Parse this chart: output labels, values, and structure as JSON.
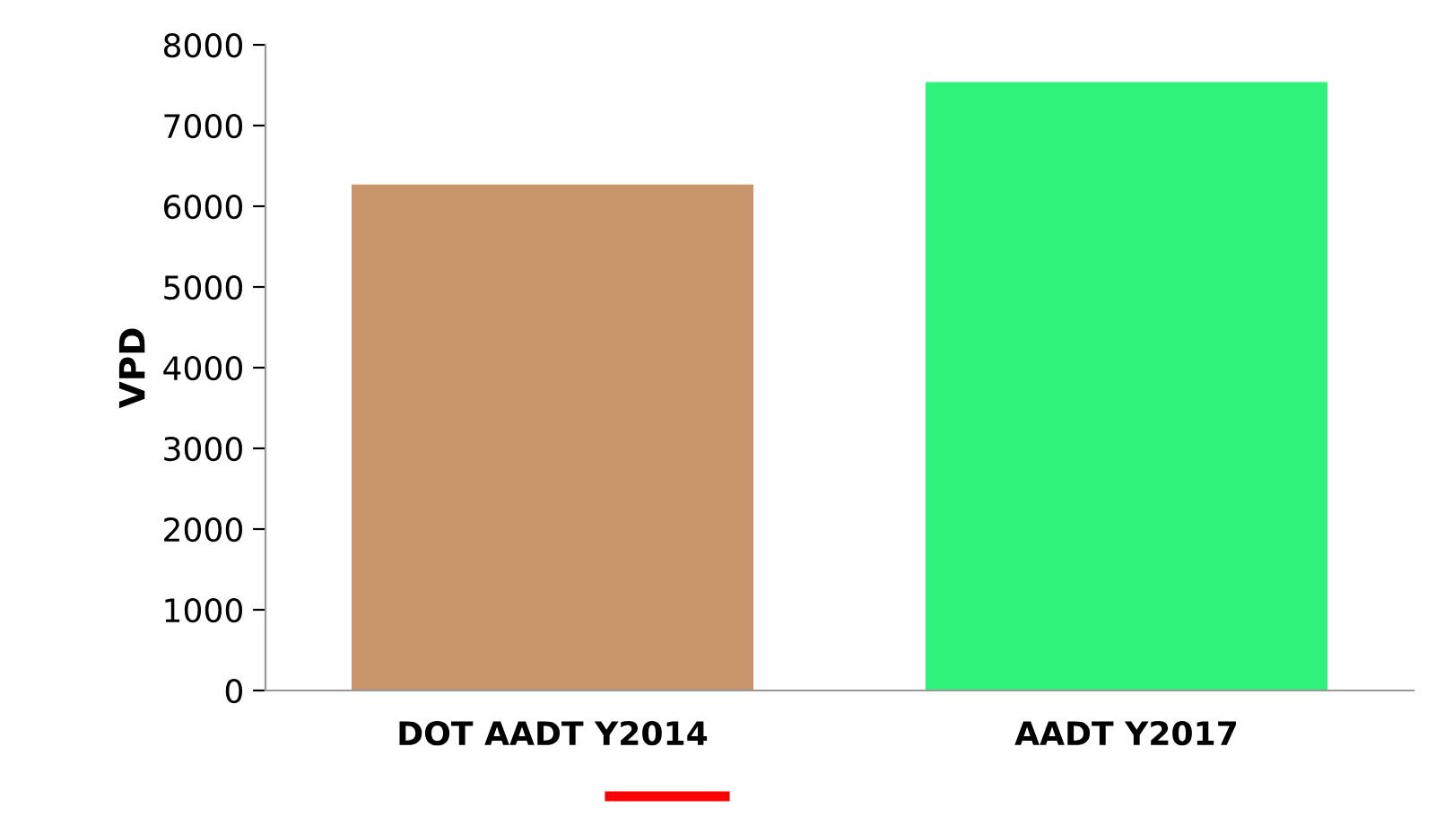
{
  "chart_data": {
    "type": "bar",
    "ylabel": "VPD",
    "categories": [
      "DOT AADT Y2014",
      "AADT Y2017"
    ],
    "values": [
      6270,
      7540
    ],
    "colors": [
      "#c8956a",
      "#2ef27a"
    ],
    "ylim": [
      0,
      8000
    ],
    "yticks": [
      0,
      1000,
      2000,
      3000,
      4000,
      5000,
      6000,
      7000,
      8000
    ],
    "grid": false,
    "legend": false
  }
}
